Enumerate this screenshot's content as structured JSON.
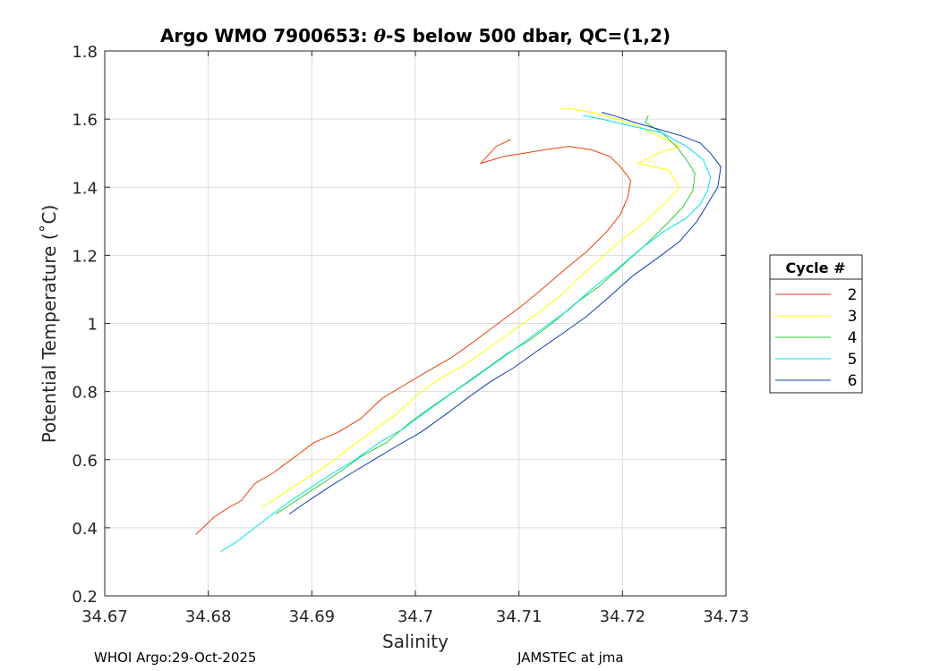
{
  "chart_data": {
    "type": "line",
    "title_prefix": "Argo WMO 7900653: ",
    "title_theta": "θ",
    "title_suffix": "-S below 500 dbar,  QC=(1,2)",
    "xlabel": "Salinity",
    "ylabel": "Potential Temperature (˚C)",
    "xlim": [
      34.67,
      34.73
    ],
    "ylim": [
      0.2,
      1.8
    ],
    "xticks": [
      "34.67",
      "34.68",
      "34.69",
      "34.7",
      "34.71",
      "34.72",
      "34.73"
    ],
    "yticks": [
      "0.2",
      "0.4",
      "0.6",
      "0.8",
      "1",
      "1.2",
      "1.4",
      "1.6",
      "1.8"
    ],
    "grid": true,
    "legend_title": "Cycle #",
    "legend_position": "outside-right",
    "series": [
      {
        "name": "2",
        "color": "#e8410b",
        "points": [
          [
            34.6788,
            0.38
          ],
          [
            34.6805,
            0.43
          ],
          [
            34.682,
            0.46
          ],
          [
            34.6832,
            0.48
          ],
          [
            34.6845,
            0.53
          ],
          [
            34.6862,
            0.56
          ],
          [
            34.688,
            0.6
          ],
          [
            34.6902,
            0.65
          ],
          [
            34.6925,
            0.68
          ],
          [
            34.6947,
            0.72
          ],
          [
            34.6968,
            0.78
          ],
          [
            34.699,
            0.82
          ],
          [
            34.7012,
            0.86
          ],
          [
            34.7035,
            0.9
          ],
          [
            34.7058,
            0.95
          ],
          [
            34.708,
            1.0
          ],
          [
            34.7102,
            1.05
          ],
          [
            34.7122,
            1.1
          ],
          [
            34.7145,
            1.16
          ],
          [
            34.7165,
            1.21
          ],
          [
            34.7185,
            1.27
          ],
          [
            34.7198,
            1.32
          ],
          [
            34.7205,
            1.37
          ],
          [
            34.7208,
            1.42
          ],
          [
            34.7198,
            1.46
          ],
          [
            34.7188,
            1.49
          ],
          [
            34.717,
            1.51
          ],
          [
            34.7148,
            1.52
          ],
          [
            34.7125,
            1.51
          ],
          [
            34.7105,
            1.5
          ],
          [
            34.7085,
            1.49
          ],
          [
            34.7063,
            1.47
          ],
          [
            34.7078,
            1.52
          ],
          [
            34.7092,
            1.54
          ]
        ]
      },
      {
        "name": "3",
        "color": "#ffff00",
        "points": [
          [
            34.6852,
            0.46
          ],
          [
            34.6872,
            0.5
          ],
          [
            34.6892,
            0.54
          ],
          [
            34.6913,
            0.58
          ],
          [
            34.6935,
            0.63
          ],
          [
            34.6957,
            0.68
          ],
          [
            34.698,
            0.73
          ],
          [
            34.7002,
            0.79
          ],
          [
            34.7025,
            0.84
          ],
          [
            34.7048,
            0.88
          ],
          [
            34.7072,
            0.93
          ],
          [
            34.7095,
            0.98
          ],
          [
            34.7118,
            1.03
          ],
          [
            34.714,
            1.08
          ],
          [
            34.716,
            1.14
          ],
          [
            34.7182,
            1.2
          ],
          [
            34.7202,
            1.25
          ],
          [
            34.7222,
            1.3
          ],
          [
            34.724,
            1.35
          ],
          [
            34.7255,
            1.4
          ],
          [
            34.7245,
            1.45
          ],
          [
            34.7215,
            1.47
          ],
          [
            34.7235,
            1.5
          ],
          [
            34.7255,
            1.52
          ],
          [
            34.7235,
            1.55
          ],
          [
            34.7215,
            1.58
          ],
          [
            34.7195,
            1.6
          ],
          [
            34.717,
            1.62
          ],
          [
            34.715,
            1.63
          ],
          [
            34.714,
            1.63
          ]
        ]
      },
      {
        "name": "4",
        "color": "#33cc33",
        "points": [
          [
            34.6865,
            0.44
          ],
          [
            34.6885,
            0.48
          ],
          [
            34.6905,
            0.52
          ],
          [
            34.6925,
            0.56
          ],
          [
            34.6948,
            0.61
          ],
          [
            34.6972,
            0.65
          ],
          [
            34.6995,
            0.71
          ],
          [
            34.7018,
            0.76
          ],
          [
            34.7042,
            0.81
          ],
          [
            34.7065,
            0.86
          ],
          [
            34.7088,
            0.91
          ],
          [
            34.711,
            0.95
          ],
          [
            34.7132,
            1.0
          ],
          [
            34.7155,
            1.06
          ],
          [
            34.7178,
            1.11
          ],
          [
            34.72,
            1.17
          ],
          [
            34.7222,
            1.23
          ],
          [
            34.7242,
            1.29
          ],
          [
            34.7258,
            1.34
          ],
          [
            34.7268,
            1.39
          ],
          [
            34.727,
            1.44
          ],
          [
            34.7262,
            1.48
          ],
          [
            34.7252,
            1.52
          ],
          [
            34.7238,
            1.56
          ],
          [
            34.7222,
            1.59
          ],
          [
            34.7225,
            1.61
          ]
        ]
      },
      {
        "name": "5",
        "color": "#00e5e5",
        "points": [
          [
            34.6812,
            0.33
          ],
          [
            34.6828,
            0.36
          ],
          [
            34.6845,
            0.4
          ],
          [
            34.6862,
            0.44
          ],
          [
            34.688,
            0.48
          ],
          [
            34.69,
            0.52
          ],
          [
            34.692,
            0.56
          ],
          [
            34.6942,
            0.6
          ],
          [
            34.6965,
            0.65
          ],
          [
            34.6988,
            0.69
          ],
          [
            34.701,
            0.74
          ],
          [
            34.7033,
            0.79
          ],
          [
            34.7057,
            0.84
          ],
          [
            34.708,
            0.89
          ],
          [
            34.7103,
            0.94
          ],
          [
            34.7125,
            0.99
          ],
          [
            34.7148,
            1.04
          ],
          [
            34.717,
            1.1
          ],
          [
            34.7195,
            1.16
          ],
          [
            34.7218,
            1.22
          ],
          [
            34.724,
            1.27
          ],
          [
            34.7262,
            1.31
          ],
          [
            34.7275,
            1.35
          ],
          [
            34.7282,
            1.39
          ],
          [
            34.7285,
            1.43
          ],
          [
            34.7278,
            1.48
          ],
          [
            34.7262,
            1.52
          ],
          [
            34.7238,
            1.56
          ],
          [
            34.7208,
            1.58
          ],
          [
            34.718,
            1.6
          ],
          [
            34.7162,
            1.61
          ]
        ]
      },
      {
        "name": "6",
        "color": "#0a3fb5",
        "points": [
          [
            34.6878,
            0.44
          ],
          [
            34.6897,
            0.48
          ],
          [
            34.6917,
            0.52
          ],
          [
            34.6938,
            0.56
          ],
          [
            34.696,
            0.6
          ],
          [
            34.6982,
            0.64
          ],
          [
            34.7005,
            0.68
          ],
          [
            34.7028,
            0.73
          ],
          [
            34.705,
            0.78
          ],
          [
            34.7073,
            0.83
          ],
          [
            34.7095,
            0.87
          ],
          [
            34.7118,
            0.92
          ],
          [
            34.7142,
            0.97
          ],
          [
            34.7165,
            1.02
          ],
          [
            34.7188,
            1.08
          ],
          [
            34.721,
            1.14
          ],
          [
            34.7233,
            1.19
          ],
          [
            34.7255,
            1.24
          ],
          [
            34.7272,
            1.3
          ],
          [
            34.7282,
            1.35
          ],
          [
            34.7292,
            1.4
          ],
          [
            34.7295,
            1.46
          ],
          [
            34.7285,
            1.5
          ],
          [
            34.7275,
            1.53
          ],
          [
            34.7258,
            1.55
          ],
          [
            34.7235,
            1.57
          ],
          [
            34.7212,
            1.59
          ],
          [
            34.7192,
            1.61
          ],
          [
            34.718,
            1.62
          ]
        ]
      }
    ]
  },
  "footer": {
    "left": "WHOI Argo:29-Oct-2025",
    "right": "JAMSTEC at jma"
  }
}
